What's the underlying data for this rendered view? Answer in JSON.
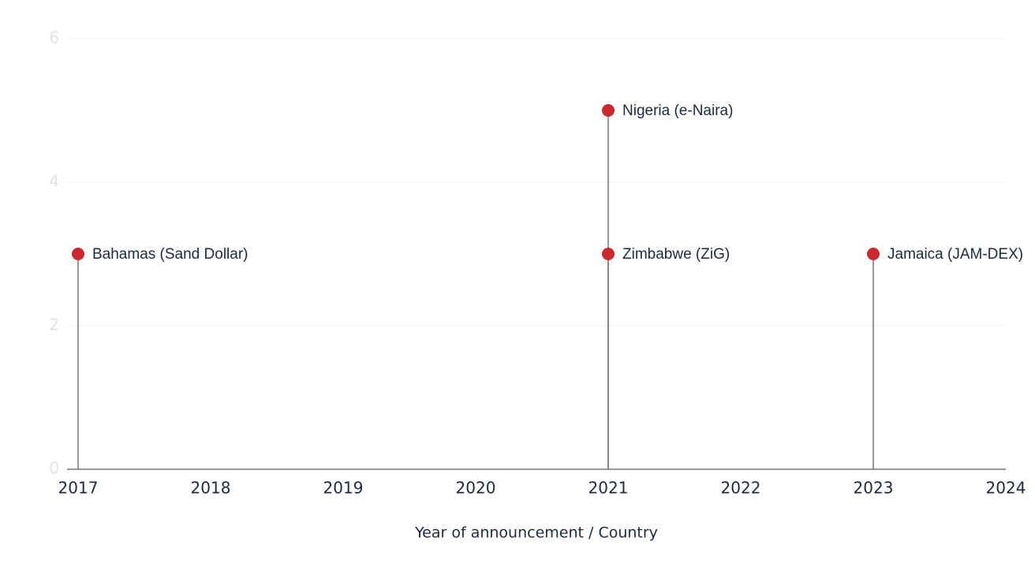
{
  "chart_data": {
    "type": "lollipop",
    "x": [
      2017,
      2021,
      2021,
      2023
    ],
    "values": [
      3,
      5,
      3,
      3
    ],
    "point_labels": [
      "Bahamas (Sand Dollar)",
      "Nigeria (e-Naira)",
      "Zimbabwe (ZiG)",
      "Jamaica (JAM-DEX)"
    ],
    "color": "#c8282e",
    "xlim": [
      2017,
      2024
    ],
    "xticks": [
      2017,
      2018,
      2019,
      2020,
      2021,
      2022,
      2023,
      2024
    ],
    "ylim": [
      0,
      6
    ],
    "yticks": [
      0,
      2,
      4,
      6
    ],
    "grid": true,
    "x_label": "Year of announcement / Country"
  }
}
